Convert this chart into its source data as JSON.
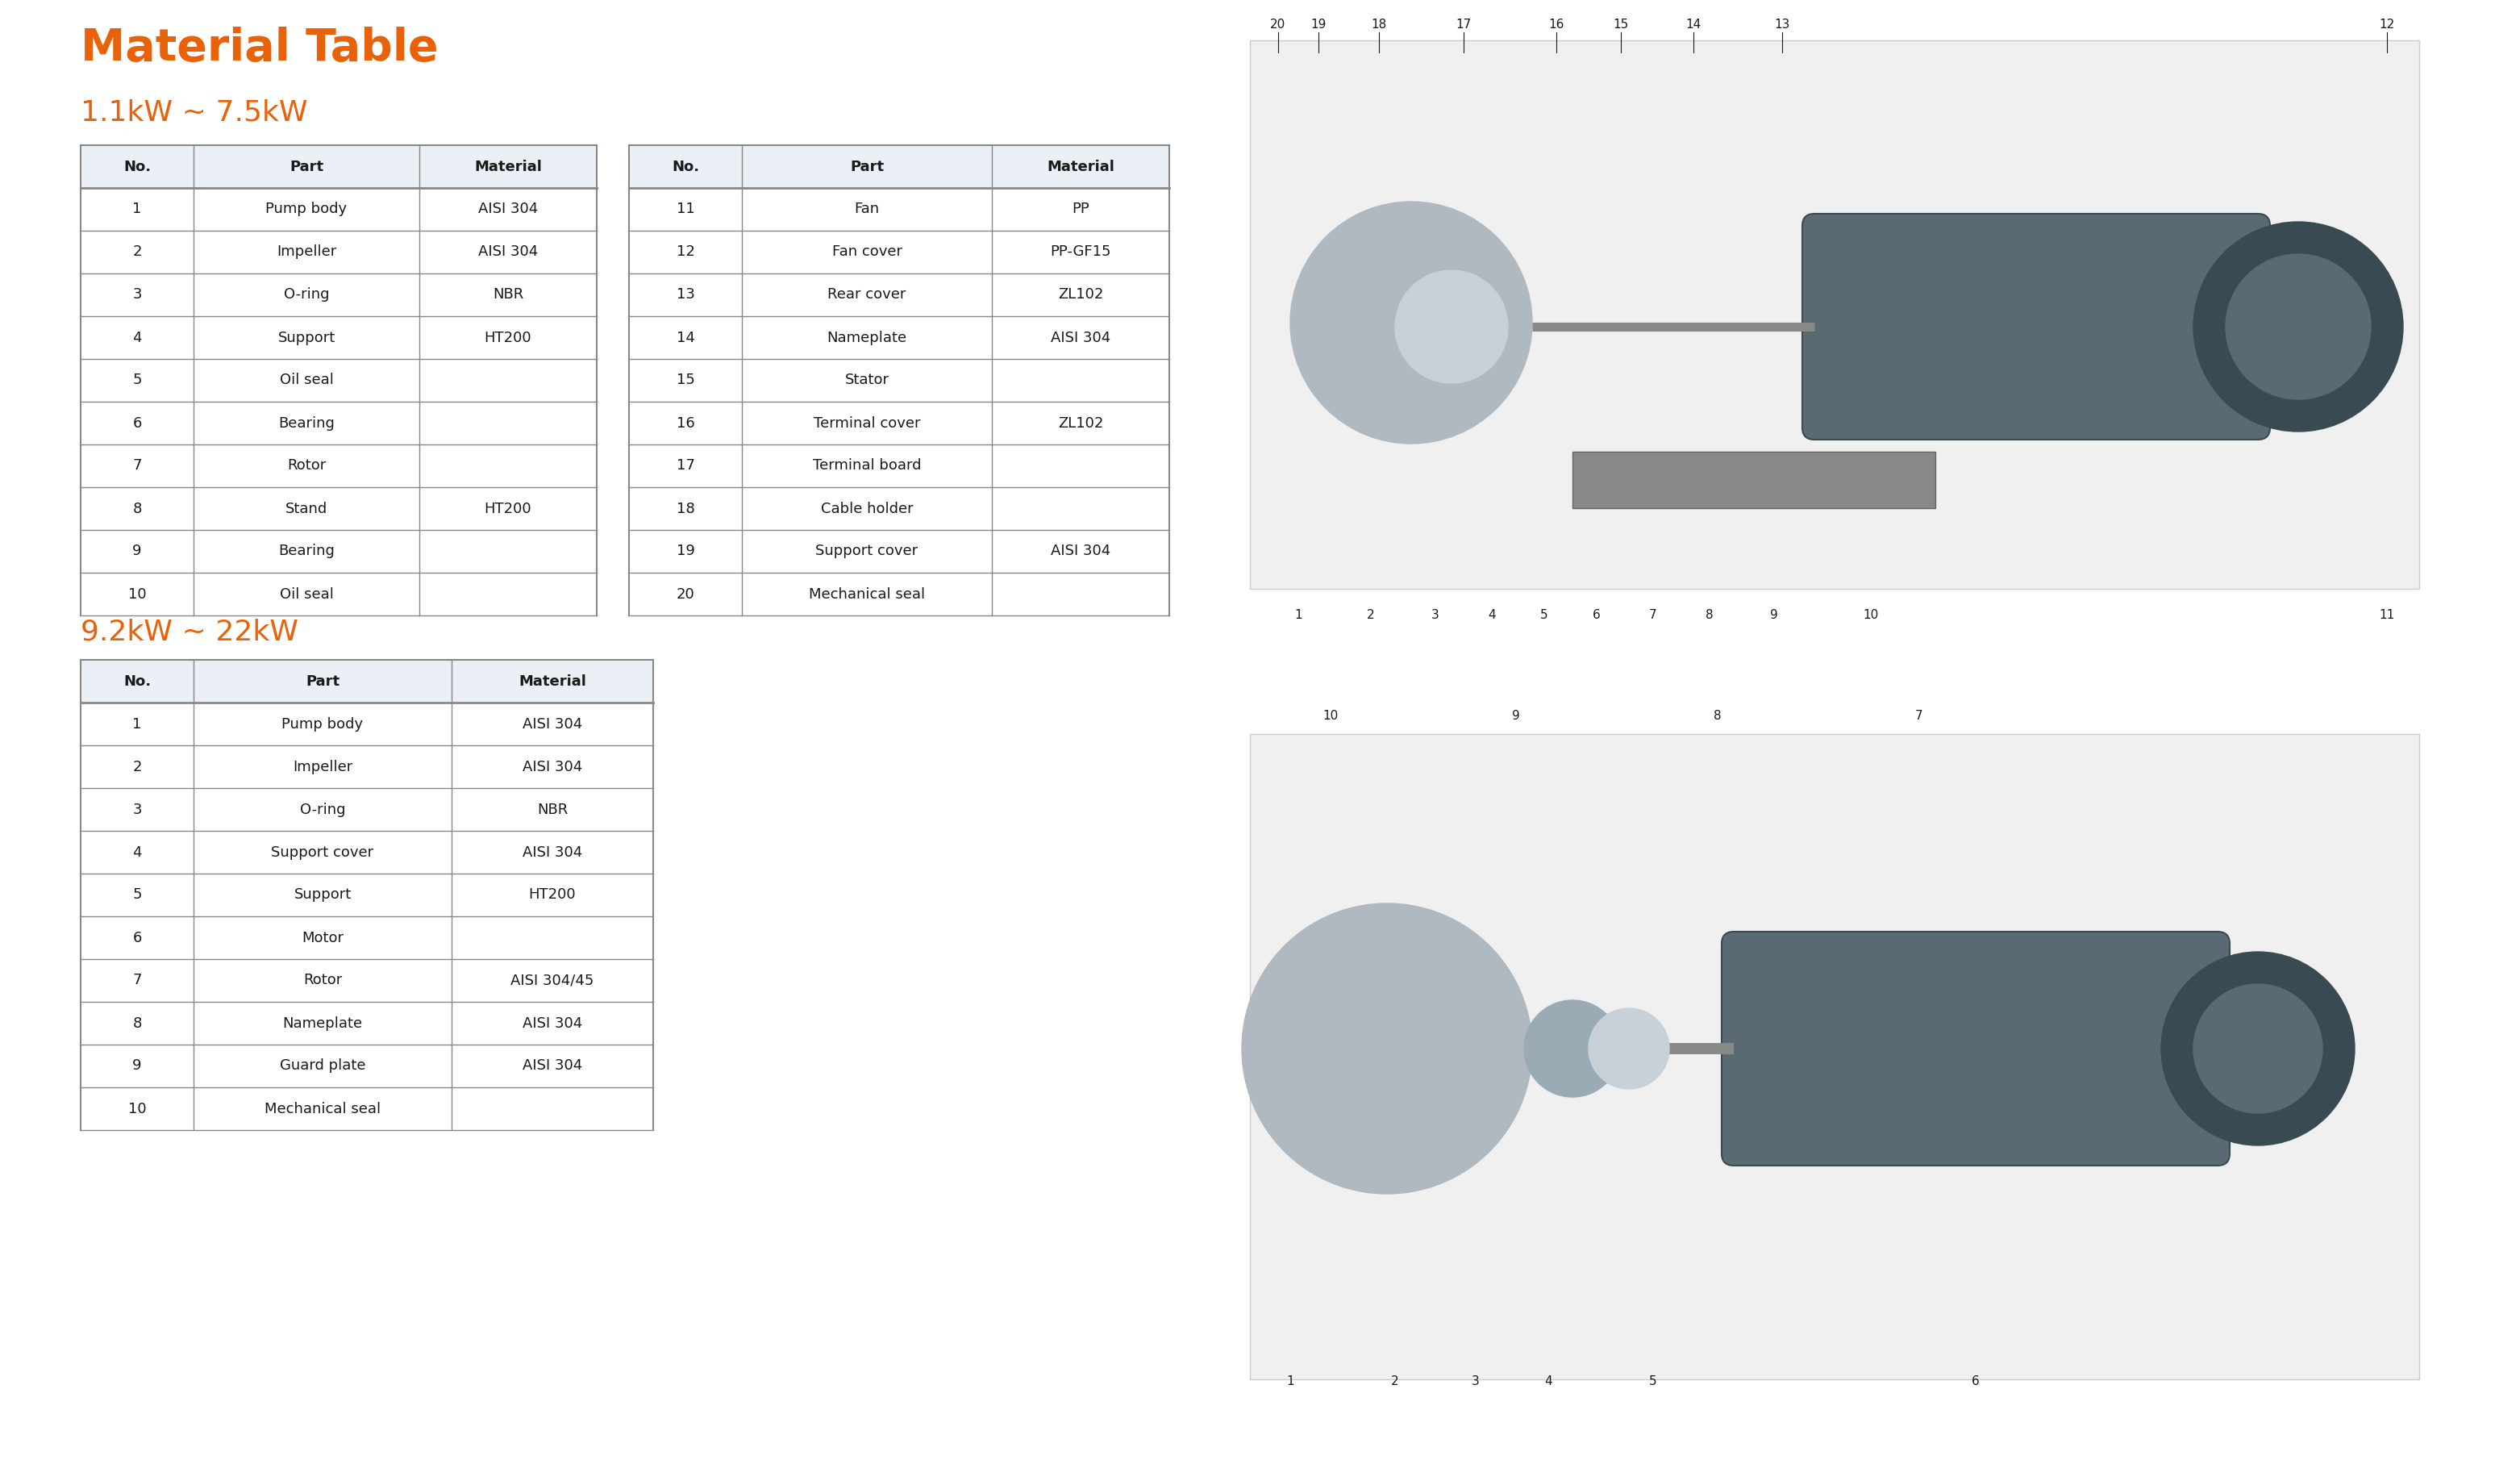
{
  "title": "Material Table",
  "title_color": "#E8620A",
  "bg_color": "#ffffff",
  "section1_title": "1.1kW ~ 7.5kW",
  "section2_title": "9.2kW ~ 22kW",
  "orange_color": "#E8620A",
  "header_bg": "#EAF0F6",
  "line_color": "#888888",
  "text_color": "#1a1a1a",
  "table1_left": {
    "headers": [
      "No.",
      "Part",
      "Material"
    ],
    "rows": [
      [
        "1",
        "Pump body",
        "AISI 304"
      ],
      [
        "2",
        "Impeller",
        "AISI 304"
      ],
      [
        "3",
        "O-ring",
        "NBR"
      ],
      [
        "4",
        "Support",
        "HT200"
      ],
      [
        "5",
        "Oil seal",
        ""
      ],
      [
        "6",
        "Bearing",
        ""
      ],
      [
        "7",
        "Rotor",
        ""
      ],
      [
        "8",
        "Stand",
        "HT200"
      ],
      [
        "9",
        "Bearing",
        ""
      ],
      [
        "10",
        "Oil seal",
        ""
      ]
    ]
  },
  "table1_right": {
    "headers": [
      "No.",
      "Part",
      "Material"
    ],
    "rows": [
      [
        "11",
        "Fan",
        "PP"
      ],
      [
        "12",
        "Fan cover",
        "PP-GF15"
      ],
      [
        "13",
        "Rear cover",
        "ZL102"
      ],
      [
        "14",
        "Nameplate",
        "AISI 304"
      ],
      [
        "15",
        "Stator",
        ""
      ],
      [
        "16",
        "Terminal cover",
        "ZL102"
      ],
      [
        "17",
        "Terminal board",
        ""
      ],
      [
        "18",
        "Cable holder",
        ""
      ],
      [
        "19",
        "Support cover",
        "AISI 304"
      ],
      [
        "20",
        "Mechanical seal",
        ""
      ]
    ]
  },
  "table2": {
    "headers": [
      "No.",
      "Part",
      "Material"
    ],
    "rows": [
      [
        "1",
        "Pump body",
        "AISI 304"
      ],
      [
        "2",
        "Impeller",
        "AISI 304"
      ],
      [
        "3",
        "O-ring",
        "NBR"
      ],
      [
        "4",
        "Support cover",
        "AISI 304"
      ],
      [
        "5",
        "Support",
        "HT200"
      ],
      [
        "6",
        "Motor",
        ""
      ],
      [
        "7",
        "Rotor",
        "AISI 304/45"
      ],
      [
        "8",
        "Nameplate",
        "AISI 304"
      ],
      [
        "9",
        "Guard plate",
        "AISI 304"
      ],
      [
        "10",
        "Mechanical seal",
        ""
      ]
    ]
  }
}
